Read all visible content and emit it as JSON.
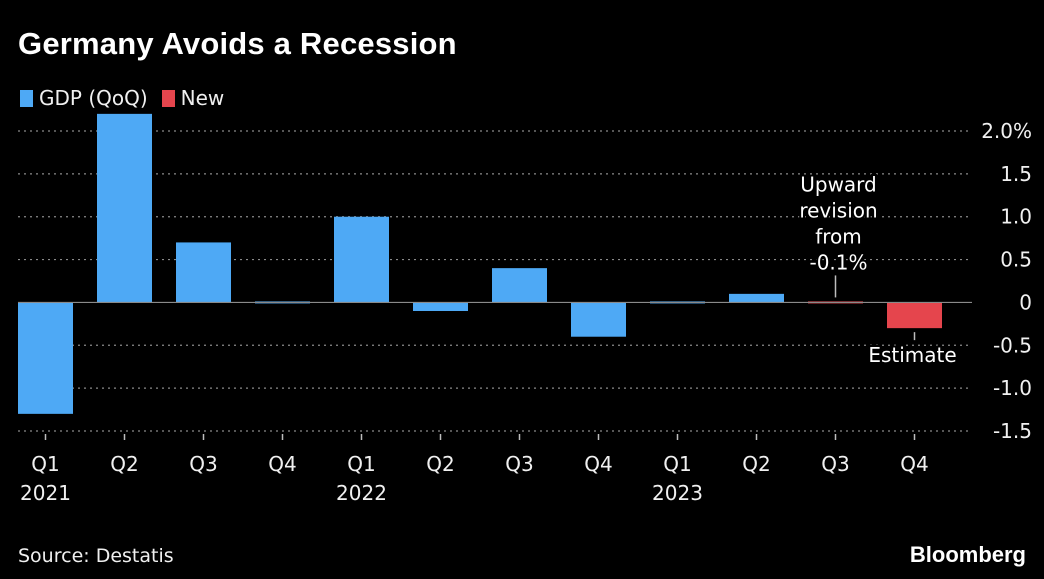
{
  "chart_data": {
    "type": "bar",
    "title": "Germany Avoids a Recession",
    "legend": [
      {
        "label": "GDP (QoQ)",
        "color": "#4ea9f5"
      },
      {
        "label": "New",
        "color": "#e5454d"
      }
    ],
    "categories": [
      "Q1",
      "Q2",
      "Q3",
      "Q4",
      "Q1",
      "Q2",
      "Q3",
      "Q4",
      "Q1",
      "Q2",
      "Q3",
      "Q4"
    ],
    "year_labels": [
      {
        "index": 0,
        "label": "2021"
      },
      {
        "index": 4,
        "label": "2022"
      },
      {
        "index": 8,
        "label": "2023"
      }
    ],
    "values": [
      -1.3,
      2.2,
      0.7,
      -0.02,
      1.0,
      -0.1,
      0.4,
      -0.4,
      -0.02,
      0.1,
      0.0,
      -0.3
    ],
    "series_flags": [
      "gdp",
      "gdp",
      "gdp",
      "gdp",
      "gdp",
      "gdp",
      "gdp",
      "gdp",
      "gdp",
      "gdp",
      "new",
      "new"
    ],
    "y_ticks": [
      {
        "value": 2.0,
        "label": "2.0%"
      },
      {
        "value": 1.5,
        "label": "1.5"
      },
      {
        "value": 1.0,
        "label": "1.0"
      },
      {
        "value": 0.5,
        "label": "0.5"
      },
      {
        "value": 0.0,
        "label": "0"
      },
      {
        "value": -0.5,
        "label": "-0.5"
      },
      {
        "value": -1.0,
        "label": "-1.0"
      },
      {
        "value": -1.5,
        "label": "-1.5"
      }
    ],
    "ylim": [
      -1.5,
      2.0
    ],
    "grid": true,
    "annotations": [
      {
        "bar_index": 10,
        "lines": [
          "Upward",
          "revision",
          "from",
          "-0.1%"
        ],
        "placement": "above"
      },
      {
        "bar_index": 11,
        "lines": [
          "Estimate"
        ],
        "placement": "below"
      }
    ]
  },
  "footer": {
    "source": "Source: Destatis",
    "brand": "Bloomberg"
  }
}
